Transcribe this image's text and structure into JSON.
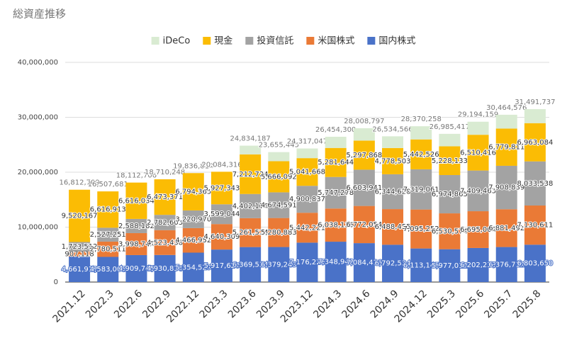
{
  "chart_data": {
    "type": "stacked_bar",
    "title": "総資産推移",
    "categories": [
      "2021.12",
      "2022.3",
      "2022.6",
      "2022.9",
      "2022.12",
      "2023.3",
      "2023.6",
      "2023.9",
      "2023.12",
      "2024.3",
      "2024.6",
      "2024.9",
      "2024.12",
      "2025.3",
      "2025.6",
      "2025.7",
      "2025.8"
    ],
    "series": [
      {
        "name": "国内株式",
        "color": "#4a72c8",
        "values": [
          4661912,
          4583006,
          4909745,
          4930836,
          5354523,
          5917620,
          6369534,
          6379243,
          7176226,
          7348942,
          7084416,
          6792534,
          6113145,
          5977012,
          6202238,
          6376712,
          6803650
        ],
        "value_labels": [
          "4,661,912",
          "4,583,006",
          "4,909,745",
          "4,930,836",
          "5,354,523",
          "5,917,620",
          "6,369,534",
          "6,379,243",
          "7,176,226",
          "7,348,942",
          "7,084,416",
          "6,792,534",
          "6,113,145",
          "5,977,012",
          "6,202,238",
          "6,376,712",
          "6,803,650"
        ]
      },
      {
        "name": "米国株式",
        "color": "#ea7a36",
        "values": [
          907118,
          2780511,
          3998745,
          4523438,
          4466952,
          4640309,
          5261524,
          5280883,
          5442221,
          6038136,
          6772054,
          6488455,
          7095252,
          6530574,
          6695006,
          6881492,
          7130611
        ],
        "value_labels": [
          "907,118",
          "2,780,511",
          "3,998,745",
          "4,523,438",
          "4,466,952",
          "4,640,309",
          "5,261,524",
          "5,280,883",
          "5,442,221",
          "6,038,136",
          "6,772,054",
          "6,488,455",
          "7,095,252",
          "6,530,574",
          "6,695,006",
          "6,881,492",
          "7,130,611"
        ]
      },
      {
        "name": "投資信託",
        "color": "#a3a3a3",
        "values": [
          1723512,
          2527251,
          2588182,
          2782603,
          3220970,
          3599044,
          4402176,
          4674591,
          4900837,
          5747278,
          6603941,
          6344628,
          7319061,
          6974865,
          7409463,
          7908839,
          8033538
        ],
        "value_labels": [
          "1,723,512",
          "2,527,251",
          "2,588,182",
          "2,782,603",
          "3,220,970",
          "3,599,044",
          "4,402,176",
          "4,674,591",
          "4,900,837",
          "5,747,278",
          "6,603,941",
          "6,344,628",
          "7,319,061",
          "6,974,865",
          "7,409,463",
          "7,908,839",
          "8,033,538"
        ]
      },
      {
        "name": "現金",
        "color": "#fbbc04",
        "values": [
          9520167,
          6616913,
          6616034,
          6473371,
          6794365,
          5927343,
          7212724,
          5666092,
          5041668,
          5281644,
          5297868,
          4778503,
          5442526,
          5228133,
          6510416,
          6779811,
          6963084
        ],
        "value_labels": [
          "9,520,167",
          "6,616,913",
          "6,616,034",
          "6,473,371",
          "6,794,365",
          "5,927,343",
          "7,212,724",
          "5,666,092",
          "5,041,668",
          "5,281,644",
          "5,297,868",
          "4,778,503",
          "5,442,526",
          "5,228,133",
          "6,510,416",
          "6,779,811",
          "6,963,084"
        ]
      },
      {
        "name": "iDeCo",
        "color": "#d9ebd2",
        "values": [
          null,
          null,
          null,
          null,
          null,
          null,
          1588229,
          1654636,
          1756095,
          2038300,
          2250518,
          2130446,
          2400274,
          2274833,
          2377036,
          2517722,
          2560854
        ]
      }
    ],
    "totals": [
      16812709,
      16507681,
      18112706,
      18710248,
      19836810,
      20084316,
      24834187,
      23655445,
      24317047,
      26454300,
      28008797,
      26534566,
      28370258,
      26985417,
      29194159,
      30464576,
      31491737
    ],
    "total_labels": [
      "16,812,709",
      "16,507,681",
      "18,112,706",
      "18,710,248",
      "19,836,810",
      "20,084,316",
      "24,834,187",
      "23,655,445",
      "24,317,047",
      "26,454,300",
      "28,008,797",
      "26,534,566",
      "28,370,258",
      "26,985,417",
      "29,194,159",
      "30,464,576",
      "31,491,737"
    ],
    "ylim": [
      0,
      40000000
    ],
    "yticks": [
      0,
      {
        "value": 10000000,
        "label": "10,000,000"
      },
      {
        "value": 20000000,
        "label": "20,000,000"
      },
      {
        "value": 30000000,
        "label": "30,000,000"
      },
      {
        "value": 40000000,
        "label": "40,000,000"
      }
    ],
    "grid": true,
    "legend": "top"
  }
}
